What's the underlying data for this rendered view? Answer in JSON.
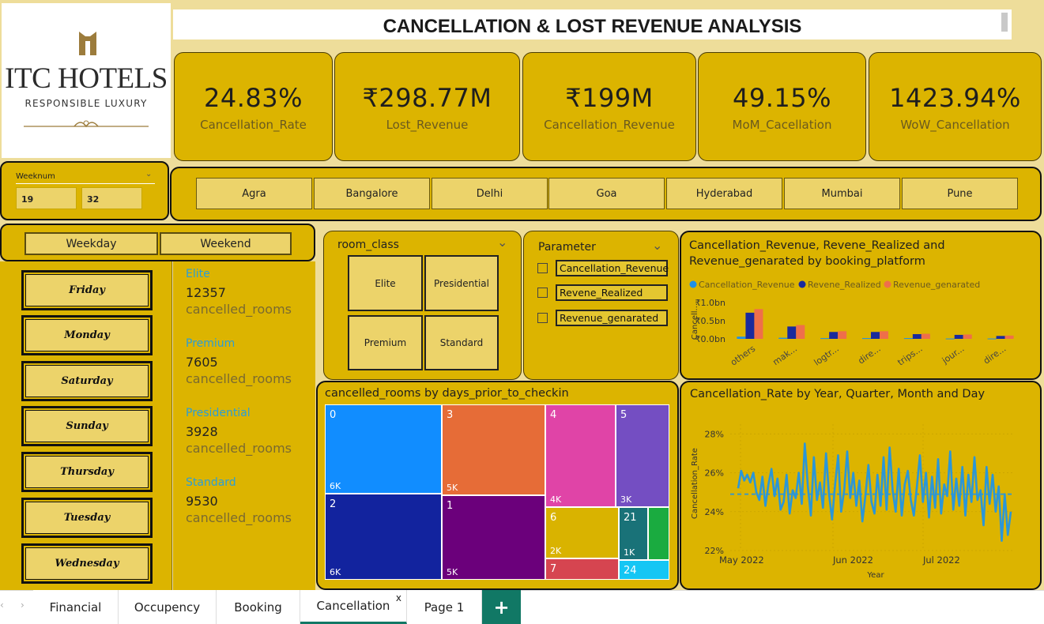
{
  "logo": {
    "brand": "ITC HOTELS",
    "tagline": "RESPONSIBLE LUXURY"
  },
  "title": "CANCELLATION & LOST REVENUE ANALYSIS",
  "kpis": [
    {
      "value": "24.83%",
      "label": "Cancellation_Rate"
    },
    {
      "value": "₹298.77M",
      "label": "Lost_Revenue"
    },
    {
      "value": "₹199M",
      "label": "Cancellation_Revenue"
    },
    {
      "value": "49.15%",
      "label": "MoM_Cacellation"
    },
    {
      "value": "1423.94%",
      "label": "WoW_Cancellation"
    }
  ],
  "weeknum": {
    "label": "Weeknum",
    "from": "19",
    "to": "32"
  },
  "cities": [
    "Agra",
    "Bangalore",
    "Delhi",
    "Goa",
    "Hyderabad",
    "Mumbai",
    "Pune"
  ],
  "daytype": [
    "Weekday",
    "Weekend"
  ],
  "days": [
    "Friday",
    "Monday",
    "Saturday",
    "Sunday",
    "Thursday",
    "Tuesday",
    "Wednesday"
  ],
  "room_classes": [
    {
      "name": "Elite",
      "value": "12357",
      "unit": "cancelled_rooms"
    },
    {
      "name": "Premium",
      "value": "7605",
      "unit": "cancelled_rooms"
    },
    {
      "name": "Presidential",
      "value": "3928",
      "unit": "cancelled_rooms"
    },
    {
      "name": "Standard",
      "value": "9530",
      "unit": "cancelled_rooms"
    }
  ],
  "room_class_slicer": {
    "title": "room_class",
    "options": [
      "Elite",
      "Presidential",
      "Premium",
      "Standard"
    ]
  },
  "parameter_slicer": {
    "title": "Parameter",
    "options": [
      "Cancellation_Revenue",
      "Revene_Realized",
      "Revenue_genarated"
    ]
  },
  "colors": {
    "cancellation_revenue": "#1e90e8",
    "revene_realized": "#1a2a9c",
    "revenue_genarated": "#ef6f4a",
    "line": "#2a96d8"
  },
  "tabs": [
    "Financial",
    "Occupency",
    "Booking",
    "Cancellation",
    "Page 1"
  ],
  "active_tab": "Cancellation",
  "chart_data": [
    {
      "type": "bar",
      "title": "Cancellation_Revenue, Revene_Realized and Revenue_genarated by booking_platform",
      "ylabel": "Cancell...",
      "yticks": [
        "₹0.0bn",
        "₹0.5bn",
        "₹1.0bn"
      ],
      "ylim": [
        0,
        1.0
      ],
      "categories": [
        "others",
        "mak...",
        "logtr...",
        "dire...",
        "trips...",
        "jour...",
        "dire..."
      ],
      "series": [
        {
          "name": "Cancellation_Revenue",
          "values": [
            0.06,
            0.03,
            0.02,
            0.02,
            0.02,
            0.01,
            0.01
          ]
        },
        {
          "name": "Revene_Realized",
          "values": [
            0.72,
            0.34,
            0.19,
            0.19,
            0.13,
            0.11,
            0.08
          ]
        },
        {
          "name": "Revenue_genarated",
          "values": [
            0.82,
            0.38,
            0.21,
            0.21,
            0.14,
            0.12,
            0.09
          ]
        }
      ],
      "legend": "top"
    },
    {
      "type": "treemap",
      "title": "cancelled_rooms by days_prior_to_checkin",
      "items": [
        {
          "label": "0",
          "value": "6K",
          "color": "#118dff"
        },
        {
          "label": "2",
          "value": "6K",
          "color": "#12239e"
        },
        {
          "label": "3",
          "value": "5K",
          "color": "#e66c37"
        },
        {
          "label": "1",
          "value": "5K",
          "color": "#6b007b"
        },
        {
          "label": "4",
          "value": "4K",
          "color": "#e044a7"
        },
        {
          "label": "5",
          "value": "3K",
          "color": "#744ec2"
        },
        {
          "label": "6",
          "value": "2K",
          "color": "#d9b300"
        },
        {
          "label": "7",
          "value": "",
          "color": "#d64550"
        },
        {
          "label": "21",
          "value": "1K",
          "color": "#197278"
        },
        {
          "label": "",
          "value": "",
          "color": "#1aab40"
        },
        {
          "label": "24",
          "value": "",
          "color": "#15c6f4"
        }
      ]
    },
    {
      "type": "line",
      "title": "Cancellation_Rate by Year, Quarter, Month and Day",
      "xlabel": "Year",
      "ylabel": "Cancellation_Rate",
      "x_ticks": [
        "May 2022",
        "Jun 2022",
        "Jul 2022"
      ],
      "y_ticks": [
        "22%",
        "24%",
        "26%",
        "28%"
      ],
      "ylim": [
        22,
        28.5
      ],
      "average": 24.9,
      "values": [
        25.2,
        26.1,
        25.6,
        25.9,
        25.5,
        26.0,
        25.0,
        24.6,
        25.8,
        24.3,
        25.4,
        26.2,
        24.8,
        25.7,
        24.1,
        24.5,
        25.9,
        23.9,
        25.1,
        24.7,
        26.0,
        24.4,
        27.5,
        25.3,
        23.8,
        26.8,
        24.6,
        25.5,
        24.2,
        27.0,
        24.9,
        23.6,
        25.4,
        26.9,
        24.0,
        25.1,
        27.1,
        24.7,
        26.0,
        24.3,
        25.6,
        23.5,
        24.8,
        26.4,
        24.5,
        23.9,
        25.9,
        24.3,
        26.8,
        24.1,
        27.3,
        25.1,
        24.0,
        26.2,
        23.8,
        25.4,
        26.1,
        24.6,
        23.8,
        25.3,
        26.9,
        24.5,
        26.0,
        23.7,
        25.8,
        24.2,
        26.7,
        23.9,
        25.4,
        24.8,
        27.1,
        24.1,
        25.7,
        24.3,
        26.3,
        23.8,
        25.9,
        24.5,
        26.8,
        24.6,
        25.1,
        23.3,
        26.3,
        24.4,
        25.9,
        24.0,
        25.3,
        22.5,
        24.9,
        22.8,
        24.0
      ]
    }
  ]
}
